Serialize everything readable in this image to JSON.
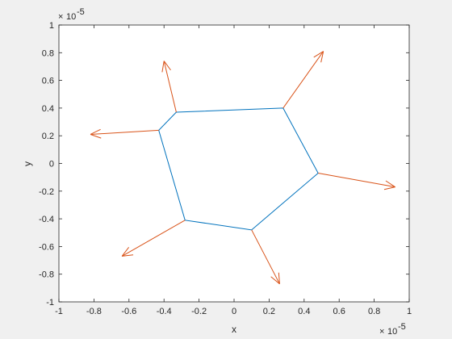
{
  "chart_data": {
    "type": "line",
    "title": "",
    "xlabel": "x",
    "ylabel": "y",
    "xlim": [
      -1,
      1
    ],
    "ylim": [
      -1,
      1
    ],
    "x_exponent_label": "× 10^-5",
    "y_exponent_label": "× 10^-5",
    "x_tick_values": [
      -1,
      -0.8,
      -0.6,
      -0.4,
      -0.2,
      0,
      0.2,
      0.4,
      0.6,
      0.8,
      1
    ],
    "x_tick_labels": [
      "-1",
      "-0.8",
      "-0.6",
      "-0.4",
      "-0.2",
      "0",
      "0.2",
      "0.4",
      "0.6",
      "0.8",
      "1"
    ],
    "y_tick_values": [
      -1,
      -0.8,
      -0.6,
      -0.4,
      -0.2,
      0,
      0.2,
      0.4,
      0.6,
      0.8,
      1
    ],
    "y_tick_labels": [
      "-1",
      "-0.8",
      "-0.6",
      "-0.4",
      "-0.2",
      "0",
      "0.2",
      "0.4",
      "0.6",
      "0.8",
      "1"
    ],
    "grid": false,
    "series": [
      {
        "color": "#0072BD",
        "style": "line",
        "points": [
          [
            0.28,
            0.4
          ],
          [
            0.48,
            -0.07
          ],
          [
            0.1,
            -0.48
          ],
          [
            -0.28,
            -0.41
          ],
          [
            -0.43,
            0.24
          ],
          [
            -0.33,
            0.37
          ],
          [
            0.28,
            0.4
          ]
        ]
      },
      {
        "color": "#D95319",
        "style": "quiver",
        "arrows": [
          {
            "from": [
              0.28,
              0.4
            ],
            "to": [
              0.51,
              0.81
            ]
          },
          {
            "from": [
              0.48,
              -0.07
            ],
            "to": [
              0.92,
              -0.17
            ]
          },
          {
            "from": [
              0.1,
              -0.48
            ],
            "to": [
              0.26,
              -0.87
            ]
          },
          {
            "from": [
              -0.28,
              -0.41
            ],
            "to": [
              -0.64,
              -0.67
            ]
          },
          {
            "from": [
              -0.43,
              0.24
            ],
            "to": [
              -0.82,
              0.21
            ]
          },
          {
            "from": [
              -0.33,
              0.37
            ],
            "to": [
              -0.4,
              0.74
            ]
          }
        ]
      }
    ]
  }
}
